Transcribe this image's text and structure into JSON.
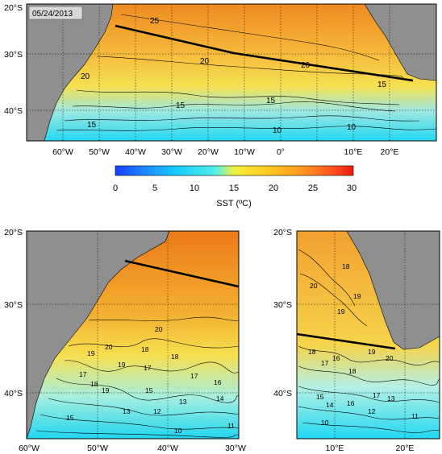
{
  "date_label": "05/24/2013",
  "colorbar": {
    "title": "SST (ºC)",
    "ticks": [
      "0",
      "5",
      "10",
      "15",
      "20",
      "25",
      "30"
    ],
    "range": [
      0,
      30
    ]
  },
  "top_map": {
    "lat_ticks": [
      "20°S",
      "30°S",
      "40°S"
    ],
    "lon_ticks": [
      "60°W",
      "50°W",
      "40°W",
      "30°W",
      "20°W",
      "10°W",
      "0°",
      "10°E",
      "20°E"
    ],
    "contour_labels": [
      "25",
      "20",
      "20",
      "20",
      "15",
      "15",
      "15",
      "10",
      "10",
      "15"
    ]
  },
  "left_map": {
    "lat_ticks": [
      "20°S",
      "30°S",
      "40°S"
    ],
    "lon_ticks": [
      "60°W",
      "50°W",
      "40°W",
      "30°W"
    ],
    "contour_labels": [
      "20",
      "20",
      "19",
      "18",
      "19",
      "18",
      "17",
      "17",
      "15",
      "16",
      "17",
      "18",
      "19",
      "13",
      "14",
      "12",
      "11",
      "10",
      "13",
      "15"
    ]
  },
  "right_map": {
    "lat_ticks": [
      "20°S",
      "30°S",
      "40°S"
    ],
    "lon_ticks": [
      "10°E",
      "20°E"
    ],
    "contour_labels": [
      "18",
      "19",
      "20",
      "19",
      "18",
      "17",
      "16",
      "18",
      "19",
      "20",
      "15",
      "14",
      "13",
      "12",
      "11",
      "10",
      "17",
      "16"
    ]
  },
  "colors": {
    "land": "#8f8f8f",
    "cold": "#20d8f0",
    "mid": "#f4e040",
    "warm": "#ee8a20"
  }
}
